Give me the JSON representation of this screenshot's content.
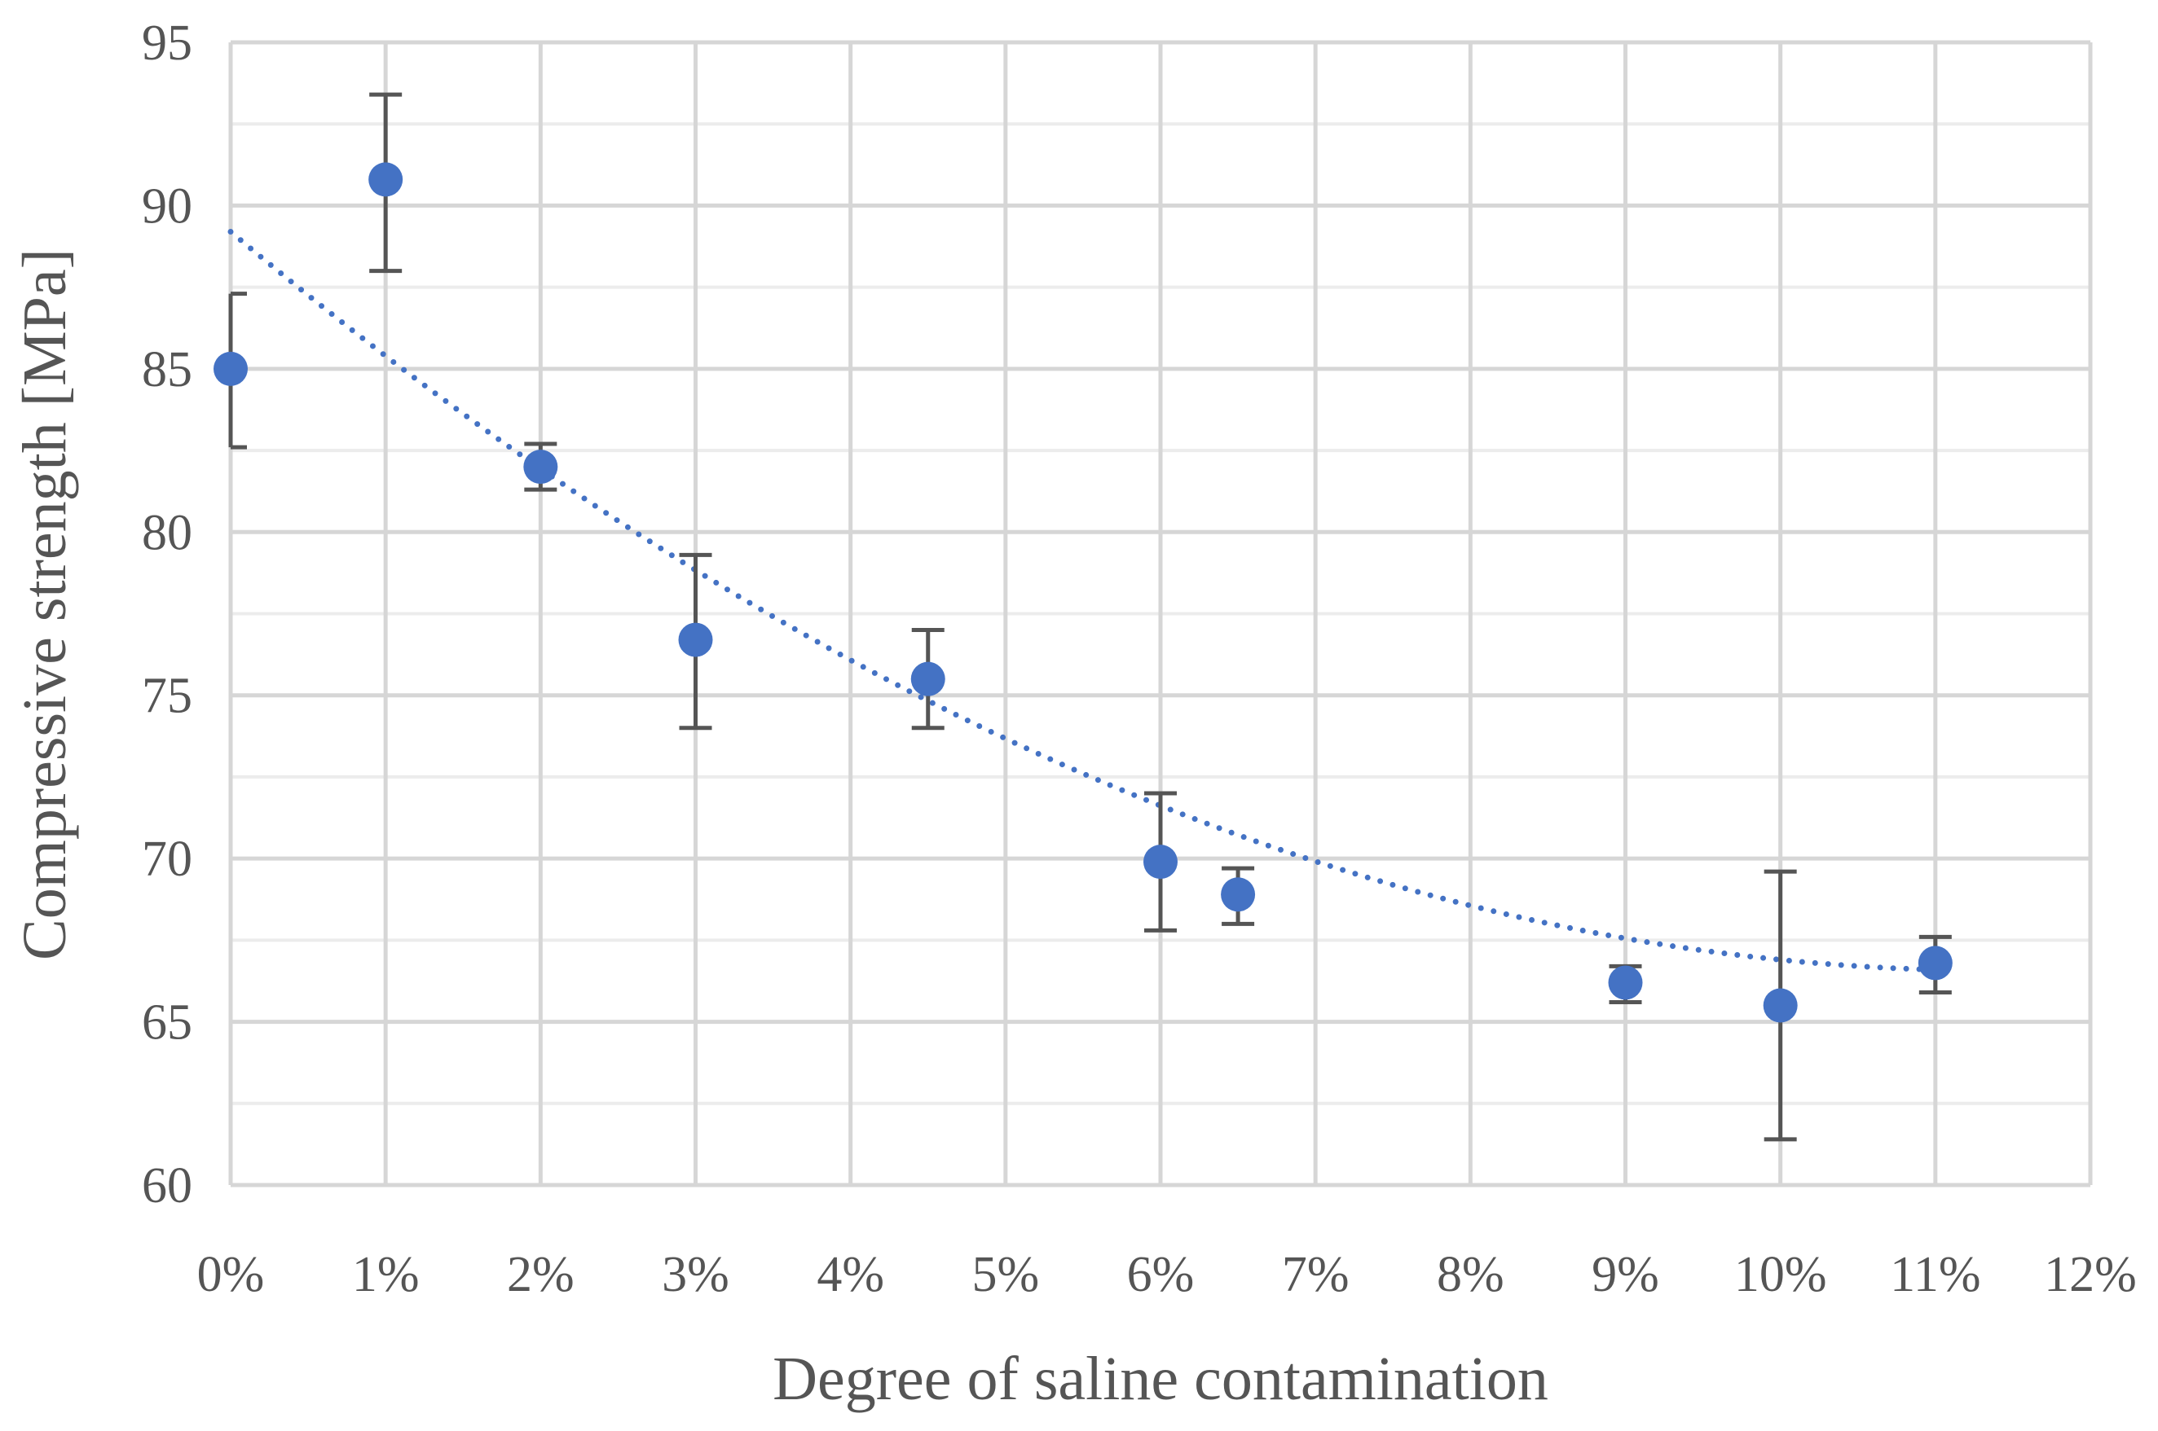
{
  "chart_data": {
    "type": "scatter",
    "title": "",
    "xlabel": "Degree of saline contamination",
    "ylabel": "Compressive strength [MPa]",
    "xlim": [
      0,
      12
    ],
    "ylim": [
      60,
      95
    ],
    "x_ticks": [
      "0%",
      "1%",
      "2%",
      "3%",
      "4%",
      "5%",
      "6%",
      "7%",
      "8%",
      "9%",
      "10%",
      "11%",
      "12%"
    ],
    "y_ticks": [
      "60",
      "65",
      "70",
      "75",
      "80",
      "85",
      "90",
      "95"
    ],
    "y_minor_step": 2.5,
    "grid": true,
    "legend": "none",
    "marker_color": "#4472c4",
    "errorbar_color": "#555555",
    "series": [
      {
        "name": "Compressive strength",
        "x": [
          0,
          1,
          2,
          3,
          4.5,
          6,
          6.5,
          9,
          10,
          11
        ],
        "y": [
          85.0,
          90.8,
          82.0,
          76.7,
          75.5,
          69.9,
          68.9,
          66.2,
          65.5,
          66.8
        ],
        "err_low": [
          82.6,
          88.0,
          81.3,
          74.0,
          74.0,
          67.8,
          68.0,
          65.6,
          61.4,
          65.9
        ],
        "err_high": [
          87.3,
          93.4,
          82.7,
          79.3,
          77.0,
          72.0,
          69.7,
          66.7,
          69.6,
          67.6
        ]
      }
    ],
    "trendline": {
      "type": "polynomial",
      "degree": 2,
      "coefficients": [
        89.2,
        -3.98,
        0.175
      ],
      "x_range": [
        0,
        11
      ],
      "style": "dotted"
    }
  }
}
